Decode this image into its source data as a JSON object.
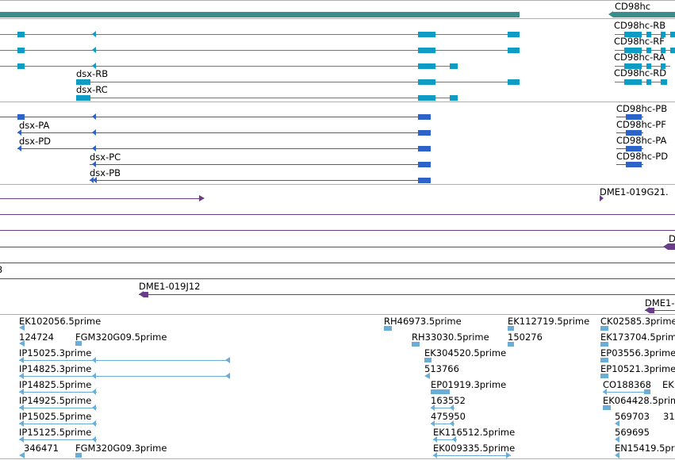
{
  "colors": {
    "gene_summary": "#3b8c8c",
    "transcript_cyan": "#0e9cc4",
    "transcript_blue": "#2d63c8",
    "clone_purple": "#6a3d8a",
    "est_lightblue": "#6aaed8",
    "separator": "#b0b0b0"
  },
  "genes": {
    "cd98hc_label": "CD98hc"
  },
  "transcripts_cyan": [
    {
      "label": "CD98hc-RB"
    },
    {
      "label": "CD98hc-RF"
    },
    {
      "label": "CD98hc-RA"
    },
    {
      "label": "CD98hc-RD"
    }
  ],
  "dsx_cyan": [
    {
      "label": "dsx-RB"
    },
    {
      "label": "dsx-RC"
    }
  ],
  "transcripts_blue": [
    {
      "label": "CD98hc-PB"
    },
    {
      "label": "CD98hc-PF"
    },
    {
      "label": "CD98hc-PA"
    },
    {
      "label": "CD98hc-PD"
    }
  ],
  "dsx_blue": [
    {
      "label": "dsx-PA"
    },
    {
      "label": "dsx-PD"
    },
    {
      "label": "dsx-PC"
    },
    {
      "label": "dsx-PB"
    }
  ],
  "clones": [
    {
      "label": "DME1-019G21."
    },
    {
      "label": "D"
    },
    {
      "label": "3"
    },
    {
      "label": "DME1-019J12"
    },
    {
      "label": "DME1-"
    }
  ],
  "ests": [
    {
      "label": "EK102056.5prime"
    },
    {
      "label": "124724"
    },
    {
      "label": "FGM320G09.5prime"
    },
    {
      "label": "IP15025.3prime"
    },
    {
      "label": "IP14825.3prime"
    },
    {
      "label": "IP14825.5prime"
    },
    {
      "label": "IP14925.5prime"
    },
    {
      "label": "IP15025.5prime"
    },
    {
      "label": "IP15125.5prime"
    },
    {
      "label": "346471"
    },
    {
      "label": "FGM320G09.3prime"
    },
    {
      "label": "RH46973.5prime"
    },
    {
      "label": "RH33030.5prime"
    },
    {
      "label": "EK304520.5prime"
    },
    {
      "label": "513766"
    },
    {
      "label": "EP01919.3prime"
    },
    {
      "label": "163552"
    },
    {
      "label": "475950"
    },
    {
      "label": "EK116512.5prime"
    },
    {
      "label": "EK009335.5prime"
    },
    {
      "label": "EK112719.5prime"
    },
    {
      "label": "150276"
    },
    {
      "label": "CK02585.3prime"
    },
    {
      "label": "EK173704.5prime"
    },
    {
      "label": "EP03556.3prime"
    },
    {
      "label": "EP10521.3prime"
    },
    {
      "label": "CO188368"
    },
    {
      "label": "EK"
    },
    {
      "label": "EK064428.5prime"
    },
    {
      "label": "569703"
    },
    {
      "label": "31"
    },
    {
      "label": "569695"
    },
    {
      "label": "EN15419.5prime"
    }
  ]
}
